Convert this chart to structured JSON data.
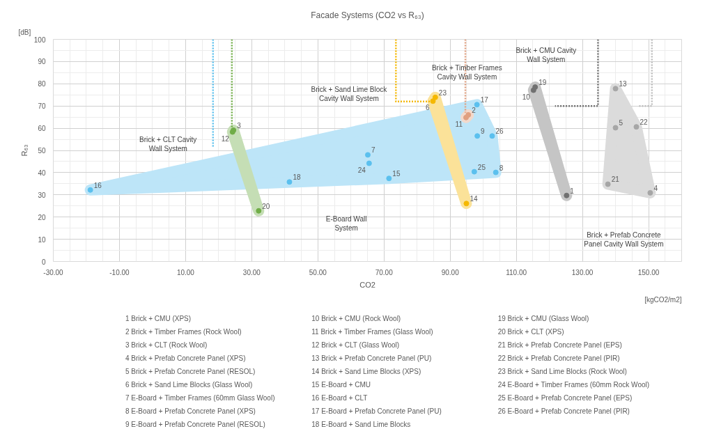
{
  "chart_data": {
    "type": "scatter",
    "title": "Facade Systems (CO2 vs R₆₃)",
    "xlabel": "CO2",
    "ylabel": "R₆₃",
    "xlim": [
      -30,
      160
    ],
    "ylim": [
      0,
      100
    ],
    "xticks": [
      {
        "value": -30,
        "label": "-30.00"
      },
      {
        "value": -10,
        "label": "-10.00"
      },
      {
        "value": 10,
        "label": "10.00"
      },
      {
        "value": 30,
        "label": "30.00"
      },
      {
        "value": 50,
        "label": "50.00"
      },
      {
        "value": 70,
        "label": "70.00"
      },
      {
        "value": 90,
        "label": "90.00"
      },
      {
        "value": 110,
        "label": "110.00"
      },
      {
        "value": 130,
        "label": "130.00"
      },
      {
        "value": 150,
        "label": "150.00"
      }
    ],
    "yticks": [
      0,
      10,
      20,
      30,
      40,
      50,
      60,
      70,
      80,
      90,
      100
    ],
    "grid": true,
    "marker": "circle",
    "series": [
      {
        "color": "#5bc0ee",
        "x": [
          65.1,
          103.8,
          98.2,
          71.5,
          -18.8,
          98.1,
          41.4,
          65.5,
          97.3,
          102.7
        ],
        "values": [
          48.0,
          40.1,
          56.5,
          37.4,
          32.2,
          70.6,
          35.8,
          44.2,
          40.4,
          56.5
        ]
      },
      {
        "color": "#70ad47",
        "x": [
          24.5,
          24.2,
          32.1
        ],
        "values": [
          59.1,
          58.3,
          22.8
        ]
      },
      {
        "color": "#f5b800",
        "x": [
          84.8,
          94.9,
          85.5
        ],
        "values": [
          72.2,
          26.1,
          73.9
        ]
      },
      {
        "color": "#e0a080",
        "x": [
          95.5,
          94.8
        ],
        "values": [
          66.0,
          64.8
        ]
      },
      {
        "color": "#707070",
        "x": [
          125.2,
          115.2,
          115.7
        ],
        "values": [
          29.7,
          77.1,
          78.5
        ]
      },
      {
        "color": "#a6a6a6",
        "x": [
          150.5,
          140.0,
          140.0,
          137.7,
          146.3
        ],
        "values": [
          30.9,
          60.2,
          77.8,
          34.8,
          60.6
        ]
      },
      {
        "type": "line",
        "line_style": "dotted",
        "marker": "none",
        "color": "#5bc0ee",
        "x": [
          18.3,
          18.3
        ],
        "values": [
          100,
          51.2
        ]
      },
      {
        "type": "line",
        "line_style": "dotted",
        "marker": "none",
        "color": "#70ad47",
        "x": [
          24.0,
          24.0
        ],
        "values": [
          100,
          59
        ]
      },
      {
        "type": "line",
        "line_style": "dotted",
        "marker": "none",
        "color": "#f5b800",
        "x": [
          73.6,
          73.6,
          84.8
        ],
        "values": [
          100,
          72,
          72
        ]
      },
      {
        "type": "line",
        "line_style": "dotted",
        "marker": "none",
        "color": "#e0a080",
        "x": [
          94.6,
          94.6
        ],
        "values": [
          100,
          67
        ]
      },
      {
        "type": "line",
        "line_style": "dotted",
        "marker": "none",
        "color": "#707070",
        "x": [
          134.7,
          134.7,
          121.7
        ],
        "values": [
          100,
          70,
          70
        ]
      },
      {
        "type": "line",
        "line_style": "dotted",
        "marker": "none",
        "color": "#bdbdbd",
        "x": [
          151.0,
          151.0,
          146.9
        ],
        "values": [
          100,
          70,
          70
        ]
      }
    ],
    "annotations": [
      "[dB]",
      "[kgCO2/m2]",
      "1 Brick + CMU (XPS)",
      "2 Brick + Timber Frames (Rock Wool)",
      "3 Brick + CLT (Rock Wool)",
      "4 Brick + Prefab Concrete Panel (XPS)",
      "5 Brick + Prefab Concrete Panel (RESOL)",
      "6 Brick + Sand Lime Blocks (Glass Wool)",
      "7 E-Board + Timber Frames (60mm Glass Wool)",
      "8 E-Board + Prefab Concrete Panel (XPS)",
      "9 E-Board + Prefab Concrete Panel (RESOL)",
      "10 Brick + CMU (Rock Wool)",
      "11 Brick + Timber Frames (Glass Wool)",
      "12 Brick + CLT (Glass Wool)",
      "13 Brick + Prefab Concrete Panel (PU)",
      "14 Brick + Sand Lime Blocks (XPS)",
      "15 E-Board + CMU",
      "16 E-Board + CLT",
      "17 E-Board + Prefab Concrete Panel (PU)",
      "18 E-Board + Sand Lime Blocks",
      "19 Brick + CMU (Glass Wool)",
      "20 Brick + CLT (XPS)",
      "21 Brick + Prefab Concrete Panel (EPS)",
      "22 Brick + Prefab Concrete Panel (PIR)",
      "23 Brick + Sand Lime Blocks (Rock Wool)",
      "24 E-Board + Timber Frames (60mm Rock Wool)",
      "25 E-Board + Prefab Concrete Panel (EPS)",
      "26 E-Board + Prefab Concrete Panel (PIR)",
      {
        "text": "1",
        "x": 125.2,
        "y": 29.7
      },
      {
        "text": "2",
        "x": 95.5,
        "y": 66.0
      },
      {
        "text": "3",
        "x": 24.5,
        "y": 59.1
      },
      {
        "text": "4",
        "x": 150.5,
        "y": 30.9
      },
      {
        "text": "5",
        "x": 140.0,
        "y": 60.2
      },
      {
        "text": "6",
        "x": 84.8,
        "y": 72.2
      },
      {
        "text": "7",
        "x": 65.1,
        "y": 48.0
      },
      {
        "text": "8",
        "x": 103.8,
        "y": 40.1
      },
      {
        "text": "9",
        "x": 98.2,
        "y": 56.5
      },
      {
        "text": "10",
        "x": 115.2,
        "y": 77.1
      },
      {
        "text": "11",
        "x": 94.8,
        "y": 64.8
      },
      {
        "text": "12",
        "x": 24.2,
        "y": 58.3
      },
      {
        "text": "13",
        "x": 140.0,
        "y": 77.8
      },
      {
        "text": "14",
        "x": 94.9,
        "y": 26.1
      },
      {
        "text": "15",
        "x": 71.5,
        "y": 37.4
      },
      {
        "text": "16",
        "x": -18.8,
        "y": 32.2
      },
      {
        "text": "17",
        "x": 98.1,
        "y": 70.6
      },
      {
        "text": "18",
        "x": 41.4,
        "y": 35.8
      },
      {
        "text": "19",
        "x": 115.7,
        "y": 78.5
      },
      {
        "text": "20",
        "x": 32.1,
        "y": 22.8
      },
      {
        "text": "21",
        "x": 137.7,
        "y": 34.8
      },
      {
        "text": "22",
        "x": 146.3,
        "y": 60.6
      },
      {
        "text": "23",
        "x": 85.5,
        "y": 73.9
      },
      {
        "text": "24",
        "x": 65.5,
        "y": 44.2
      },
      {
        "text": "25",
        "x": 97.3,
        "y": 40.4
      },
      {
        "text": "26",
        "x": 102.7,
        "y": 56.5
      },
      "E-Board Wall\nSystem",
      "Brick + CLT Cavity\nWall System",
      "Brick + Sand Lime Block\nCavity Wall System",
      "Brick + Timber Frames\nCavity Wall System",
      "Brick + CMU Cavity\nWall System",
      "Brick + Prefab Concrete\nPanel Cavity Wall System"
    ]
  }
}
